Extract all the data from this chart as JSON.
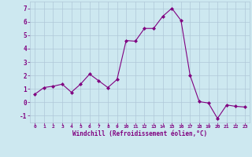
{
  "x": [
    0,
    1,
    2,
    3,
    4,
    5,
    6,
    7,
    8,
    9,
    10,
    11,
    12,
    13,
    14,
    15,
    16,
    17,
    18,
    19,
    20,
    21,
    22,
    23
  ],
  "y": [
    0.6,
    1.1,
    1.2,
    1.35,
    0.75,
    1.35,
    2.1,
    1.6,
    1.1,
    1.7,
    4.6,
    4.55,
    5.5,
    5.5,
    6.4,
    7.0,
    6.1,
    2.0,
    0.05,
    -0.05,
    -1.2,
    -0.2,
    -0.3,
    -0.35
  ],
  "line_color": "#800080",
  "marker": "D",
  "marker_size": 2,
  "line_width": 0.8,
  "bg_color": "#cde8f0",
  "grid_color": "#b0c8d8",
  "xlabel": "Windchill (Refroidissement éolien,°C)",
  "xlabel_color": "#800080",
  "tick_color": "#800080",
  "ylim": [
    -1.5,
    7.5
  ],
  "xlim": [
    -0.5,
    23.5
  ],
  "yticks": [
    -1,
    0,
    1,
    2,
    3,
    4,
    5,
    6,
    7
  ],
  "xticks": [
    0,
    1,
    2,
    3,
    4,
    5,
    6,
    7,
    8,
    9,
    10,
    11,
    12,
    13,
    14,
    15,
    16,
    17,
    18,
    19,
    20,
    21,
    22,
    23
  ]
}
